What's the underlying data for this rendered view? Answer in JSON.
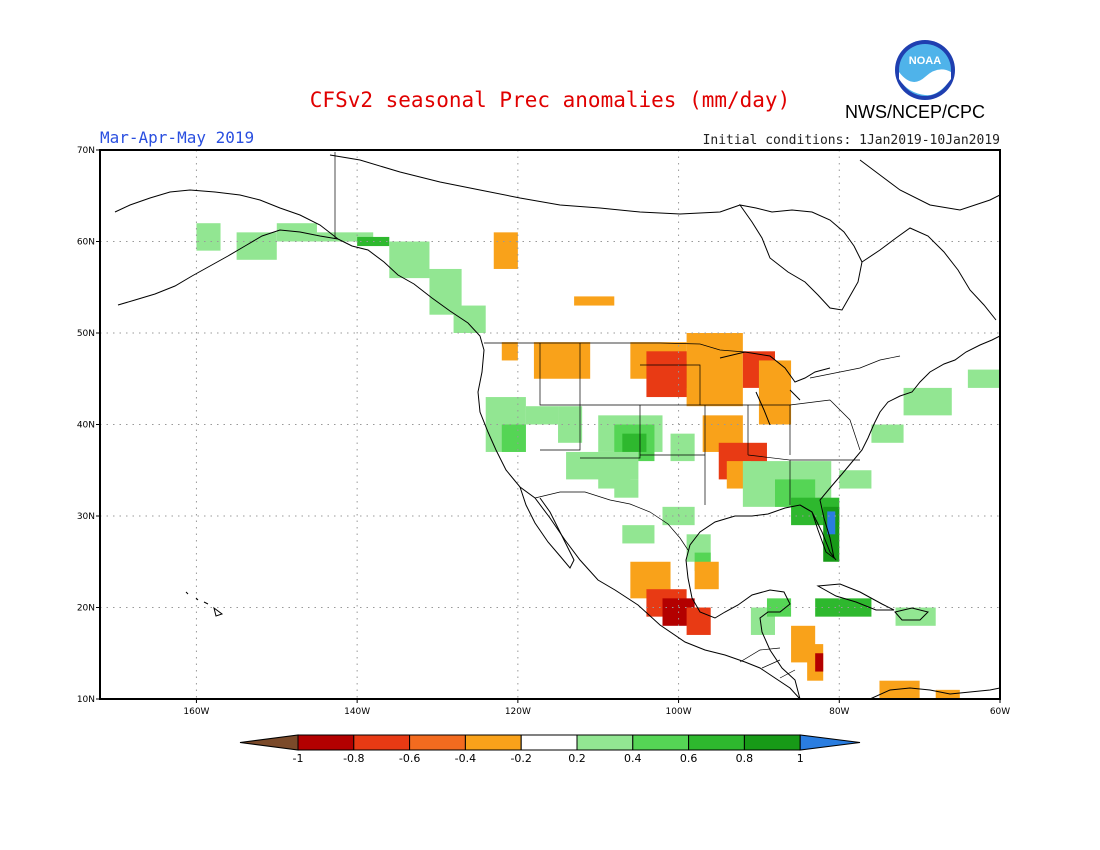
{
  "title": "CFSv2 seasonal Prec anomalies (mm/day)",
  "period": "Mar-Apr-May 2019",
  "initial_conditions": "Initial conditions: 1Jan2019-10Jan2019",
  "agency": "NWS/NCEP/CPC",
  "logo_text": "NOAA",
  "colors": {
    "title": "#e00000",
    "period": "#2a4fe0",
    "brown": "#7b4a2a",
    "dark_red": "#b30000",
    "red": "#e83a14",
    "orange_red": "#f36b1f",
    "orange": "#f9a21a",
    "light_green": "#92e692",
    "green": "#55d555",
    "mid_green": "#2eb82e",
    "dark_green": "#179a17",
    "blue": "#2a7de0",
    "grid": "#999999",
    "coast": "#000000"
  },
  "lat_labels": [
    "70N",
    "60N",
    "50N",
    "40N",
    "30N",
    "20N",
    "10N"
  ],
  "lon_labels": [
    "160W",
    "140W",
    "120W",
    "100W",
    "80W",
    "60W"
  ],
  "colorbar": {
    "labels": [
      "-1",
      "-0.8",
      "-0.6",
      "-0.4",
      "-0.2",
      "0.2",
      "0.4",
      "0.6",
      "0.8",
      "1"
    ]
  }
}
